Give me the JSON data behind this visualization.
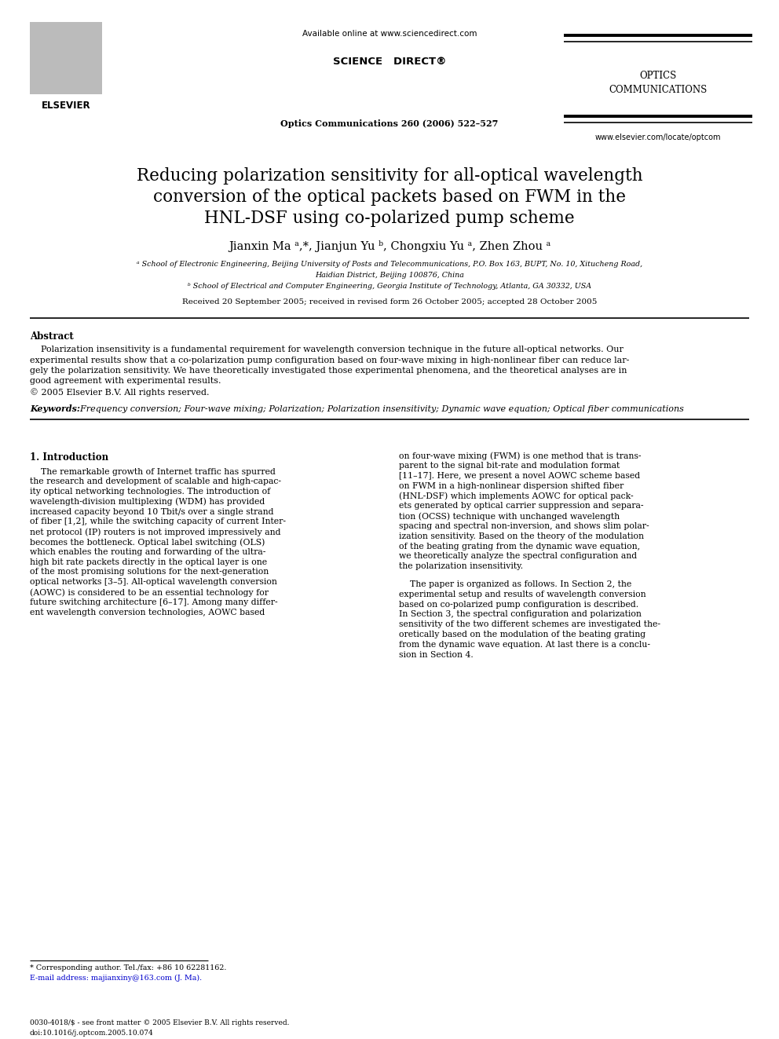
{
  "bg_color": "#ffffff",
  "title_line1": "Reducing polarization sensitivity for all-optical wavelength",
  "title_line2": "conversion of the optical packets based on FWM in the",
  "title_line3": "HNL-DSF using co-polarized pump scheme",
  "authors": "Jianxin Ma ᵃ,*, Jianjun Yu ᵇ, Chongxiu Yu ᵃ, Zhen Zhou ᵃ",
  "affil_a": "ᵃ School of Electronic Engineering, Beijing University of Posts and Telecommunications, P.O. Box 163, BUPT, No. 10, Xitucheng Road,",
  "affil_a2": "Haidian District, Beijing 100876, China",
  "affil_b": "ᵇ School of Electrical and Computer Engineering, Georgia Institute of Technology, Atlanta, GA 30332, USA",
  "received": "Received 20 September 2005; received in revised form 26 October 2005; accepted 28 October 2005",
  "abstract_title": "Abstract",
  "abstract_text1": "    Polarization insensitivity is a fundamental requirement for wavelength conversion technique in the future all-optical networks. Our",
  "abstract_text2": "experimental results show that a co-polarization pump configuration based on four-wave mixing in high-nonlinear fiber can reduce lar-",
  "abstract_text3": "gely the polarization sensitivity. We have theoretically investigated those experimental phenomena, and the theoretical analyses are in",
  "abstract_text4": "good agreement with experimental results.",
  "abstract_copy": "© 2005 Elsevier B.V. All rights reserved.",
  "keywords_label": "Keywords:",
  "keywords_text": "  Frequency conversion; Four-wave mixing; Polarization; Polarization insensitivity; Dynamic wave equation; Optical fiber communications",
  "section1_title": "1. Introduction",
  "col1_lines": [
    "    The remarkable growth of Internet traffic has spurred",
    "the research and development of scalable and high-capac-",
    "ity optical networking technologies. The introduction of",
    "wavelength-division multiplexing (WDM) has provided",
    "increased capacity beyond 10 Tbit/s over a single strand",
    "of fiber [1,2], while the switching capacity of current Inter-",
    "net protocol (IP) routers is not improved impressively and",
    "becomes the bottleneck. Optical label switching (OLS)",
    "which enables the routing and forwarding of the ultra-",
    "high bit rate packets directly in the optical layer is one",
    "of the most promising solutions for the next-generation",
    "optical networks [3–5]. All-optical wavelength conversion",
    "(AOWC) is considered to be an essential technology for",
    "future switching architecture [6–17]. Among many differ-",
    "ent wavelength conversion technologies, AOWC based"
  ],
  "col2_lines1": [
    "on four-wave mixing (FWM) is one method that is trans-",
    "parent to the signal bit-rate and modulation format",
    "[11–17]. Here, we present a novel AOWC scheme based",
    "on FWM in a high-nonlinear dispersion shifted fiber",
    "(HNL-DSF) which implements AOWC for optical pack-",
    "ets generated by optical carrier suppression and separa-",
    "tion (OCSS) technique with unchanged wavelength",
    "spacing and spectral non-inversion, and shows slim polar-",
    "ization sensitivity. Based on the theory of the modulation",
    "of the beating grating from the dynamic wave equation,",
    "we theoretically analyze the spectral configuration and",
    "the polarization insensitivity."
  ],
  "col2_lines2": [
    "    The paper is organized as follows. In Section 2, the",
    "experimental setup and results of wavelength conversion",
    "based on co-polarized pump configuration is described.",
    "In Section 3, the spectral configuration and polarization",
    "sensitivity of the two different schemes are investigated the-",
    "oretically based on the modulation of the beating grating",
    "from the dynamic wave equation. At last there is a conclu-",
    "sion in Section 4."
  ],
  "header_available": "Available online at www.sciencedirect.com",
  "header_sd": "SCIENCE   DIRECT®",
  "header_journal": "Optics Communications 260 (2006) 522–527",
  "header_optics1": "OPTICS",
  "header_optics2": "COMMUNICATIONS",
  "header_website": "www.elsevier.com/locate/optcom",
  "footer_issn": "0030-4018/$ - see front matter © 2005 Elsevier B.V. All rights reserved.",
  "footer_doi": "doi:10.1016/j.optcom.2005.10.074",
  "footnote_star": "* Corresponding author. Tel./fax: +86 10 62281162.",
  "footnote_email": "E-mail address: majianxiny@163.com (J. Ma)."
}
